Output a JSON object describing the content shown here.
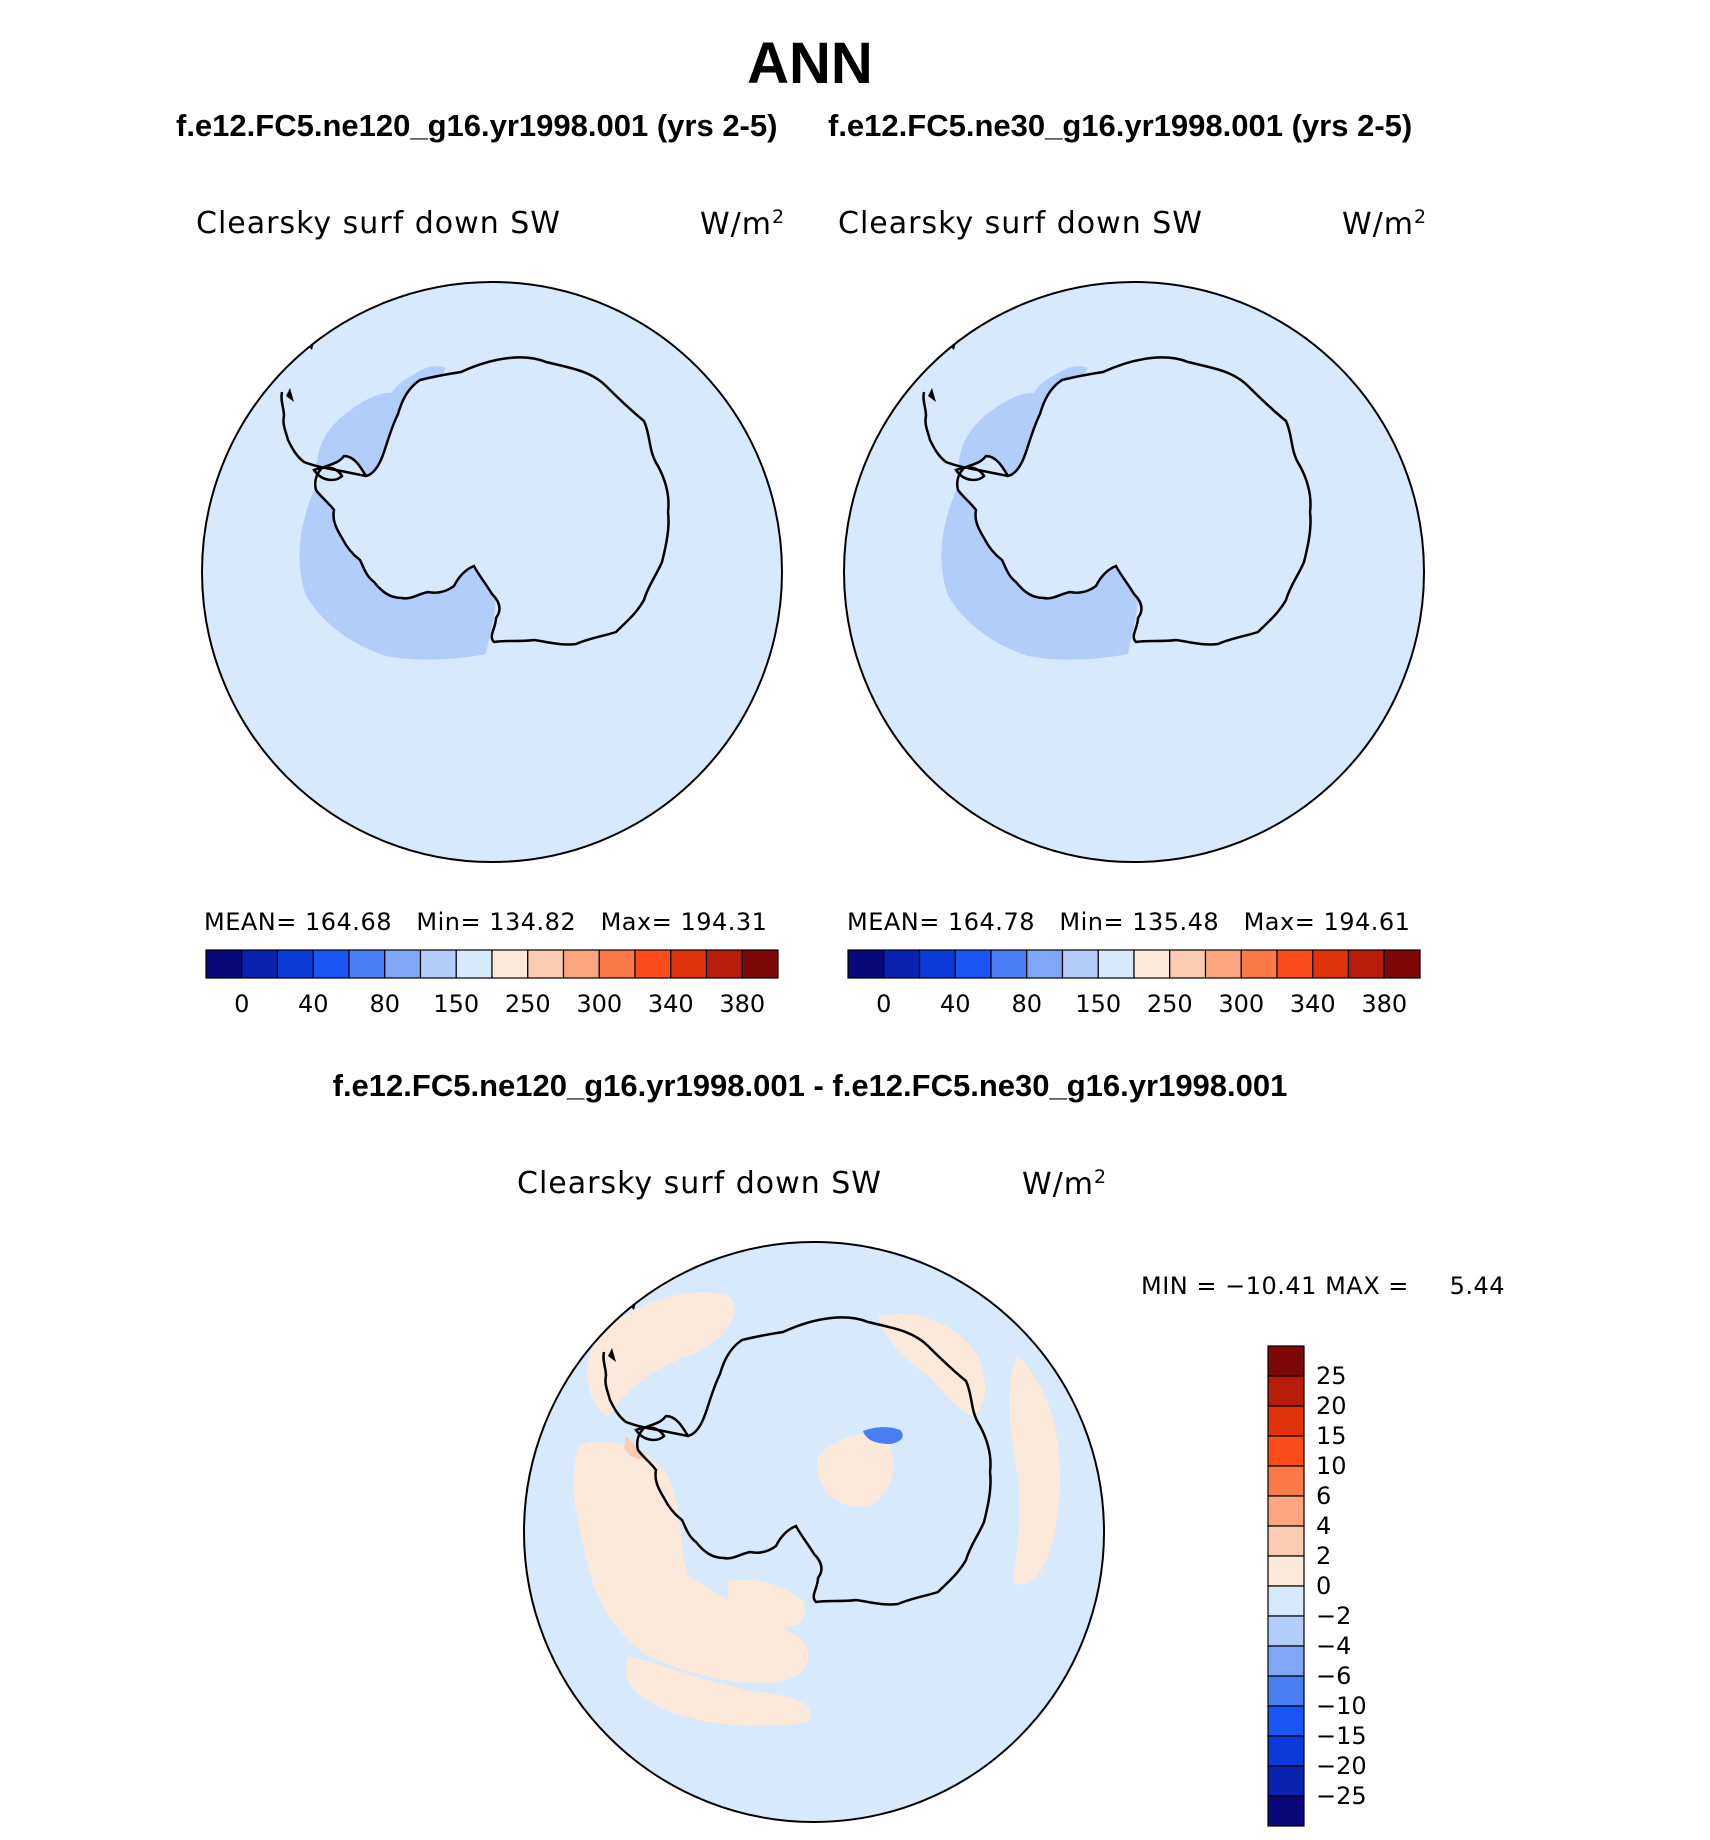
{
  "figure": {
    "title": "ANN",
    "subtitle_left": "f.e12.FC5.ne120_g16.yr1998.001 (yrs 2-5)",
    "subtitle_right": "f.e12.FC5.ne30_g16.yr1998.001 (yrs 2-5)",
    "diff_title": "f.e12.FC5.ne120_g16.yr1998.001 - f.e12.FC5.ne30_g16.yr1998.001"
  },
  "colors": {
    "ocean_light": "#d7e9fc",
    "shelf_blue": "#b3cdfb",
    "positive_light": "#fde9d9",
    "coast": "#000000"
  },
  "chart_data": [
    {
      "type": "heatmap",
      "projection": "south-polar-stereographic",
      "variable": "Clearsky surf down SW",
      "units": "W/m²",
      "stats": {
        "mean_label": "MEAN=",
        "mean": "164.68",
        "min_label": "Min=",
        "min": "134.82",
        "max_label": "Max=",
        "max": "194.31"
      },
      "colorbar": {
        "orientation": "horizontal",
        "labels": [
          "0",
          "40",
          "80",
          "150",
          "250",
          "300",
          "340",
          "380"
        ],
        "colors": [
          "#08087a",
          "#0a22b0",
          "#0a3ad8",
          "#1a55f5",
          "#4a7ef5",
          "#80a6f8",
          "#b3cdfb",
          "#d7e9fc",
          "#fde9d9",
          "#fcccb2",
          "#fca580",
          "#fc7a47",
          "#fc4c1c",
          "#e0320b",
          "#b81c0a",
          "#7e0707"
        ]
      }
    },
    {
      "type": "heatmap",
      "projection": "south-polar-stereographic",
      "variable": "Clearsky surf down SW",
      "units": "W/m²",
      "stats": {
        "mean_label": "MEAN=",
        "mean": "164.78",
        "min_label": "Min=",
        "min": "135.48",
        "max_label": "Max=",
        "max": "194.61"
      },
      "colorbar": {
        "orientation": "horizontal",
        "labels": [
          "0",
          "40",
          "80",
          "150",
          "250",
          "300",
          "340",
          "380"
        ],
        "colors": [
          "#08087a",
          "#0a22b0",
          "#0a3ad8",
          "#1a55f5",
          "#4a7ef5",
          "#80a6f8",
          "#b3cdfb",
          "#d7e9fc",
          "#fde9d9",
          "#fcccb2",
          "#fca580",
          "#fc7a47",
          "#fc4c1c",
          "#e0320b",
          "#b81c0a",
          "#7e0707"
        ]
      }
    },
    {
      "type": "heatmap",
      "projection": "south-polar-stereographic",
      "variable": "Clearsky surf down SW",
      "units": "W/m²",
      "stats": {
        "min_label": "MIN =",
        "min": "−10.41",
        "max_label": "MAX =",
        "max": "5.44"
      },
      "colorbar": {
        "orientation": "vertical",
        "labels": [
          "25",
          "20",
          "15",
          "10",
          "6",
          "4",
          "2",
          "0",
          "−2",
          "−4",
          "−6",
          "−10",
          "−15",
          "−20",
          "−25"
        ],
        "colors": [
          "#7e0707",
          "#b81c0a",
          "#e0320b",
          "#fc4c1c",
          "#fc7a47",
          "#fca580",
          "#fcccb2",
          "#fde9d9",
          "#d7e9fc",
          "#b3cdfb",
          "#80a6f8",
          "#4a7ef5",
          "#1a55f5",
          "#0a3ad8",
          "#0a22b0",
          "#08087a"
        ]
      }
    }
  ]
}
